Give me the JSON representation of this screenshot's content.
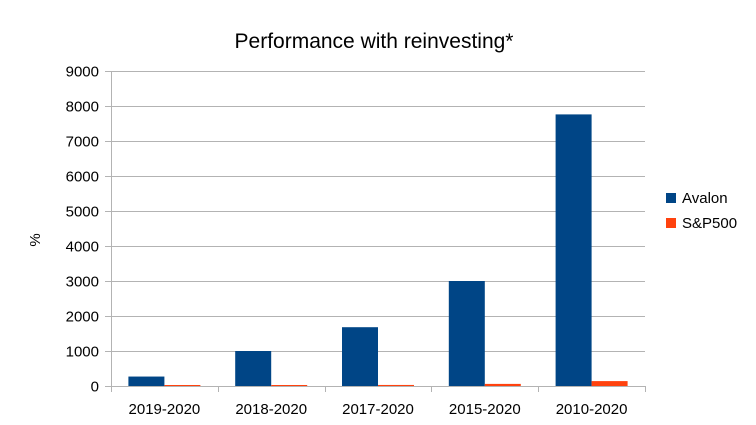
{
  "chart_data": {
    "type": "bar",
    "title": "Performance with reinvesting*",
    "xlabel": "",
    "ylabel": "%",
    "ylim": [
      0,
      9000
    ],
    "yticks": [
      0,
      1000,
      2000,
      3000,
      4000,
      5000,
      6000,
      7000,
      8000,
      9000
    ],
    "categories": [
      "2019-2020",
      "2018-2020",
      "2017-2020",
      "2015-2020",
      "2010-2020"
    ],
    "series": [
      {
        "name": "Avalon",
        "color": "#004586",
        "values": [
          270,
          1000,
          1680,
          3000,
          7760
        ]
      },
      {
        "name": "S&P500",
        "color": "#ff420e",
        "values": [
          10,
          20,
          30,
          60,
          140
        ]
      }
    ],
    "grid": true,
    "legend_position": "right"
  }
}
